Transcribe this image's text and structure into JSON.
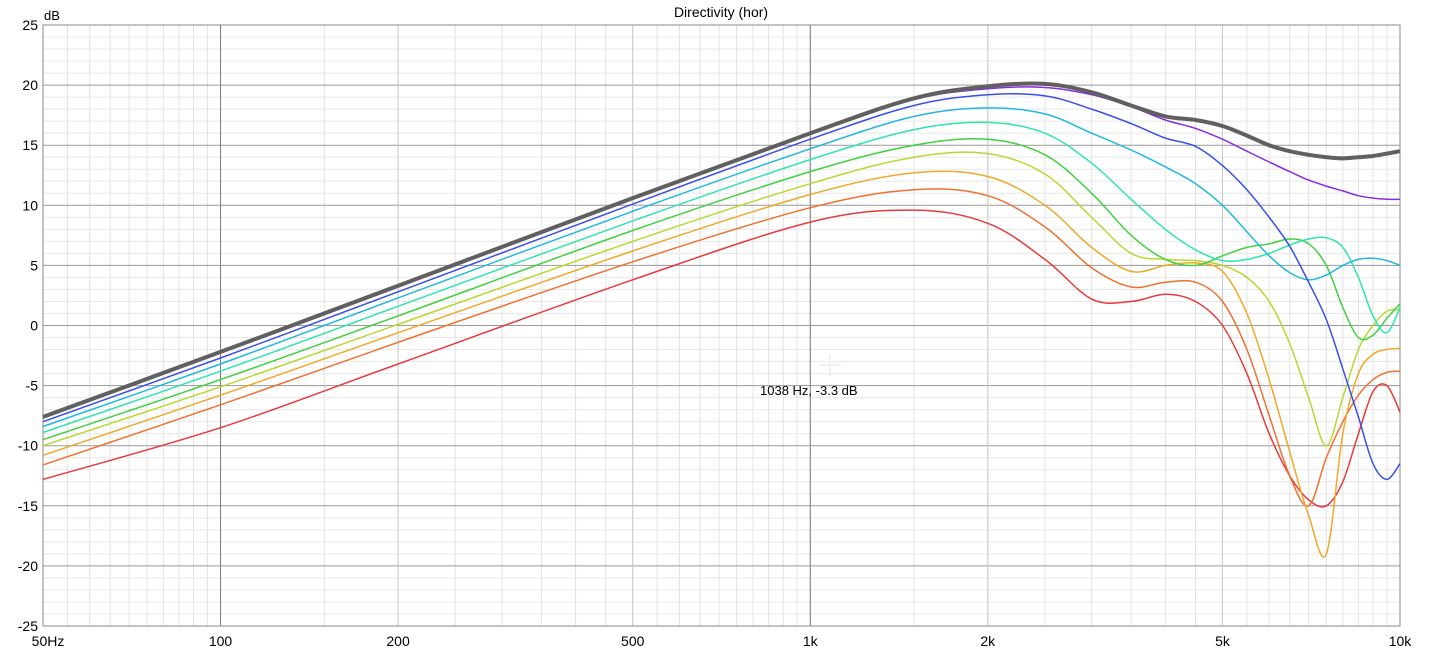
{
  "chart_data": {
    "type": "line",
    "title": "Directivity (hor)",
    "y_unit_label": "dB",
    "x_scale": "log",
    "xlim": [
      50,
      10000
    ],
    "ylim": [
      -25,
      25
    ],
    "grid": true,
    "x_tick_values": [
      50,
      100,
      200,
      500,
      1000,
      2000,
      5000,
      10000
    ],
    "x_tick_labels": [
      "50Hz",
      "100",
      "200",
      "500",
      "1k",
      "2k",
      "5k",
      "10k"
    ],
    "y_tick_values": [
      25,
      20,
      15,
      10,
      5,
      0,
      -5,
      -10,
      -15,
      -20,
      -25
    ],
    "y_tick_labels": [
      "25",
      "20",
      "15",
      "10",
      "5",
      "0",
      "-5",
      "-10",
      "-15",
      "-20",
      "-25"
    ],
    "cursor": {
      "x": 1038,
      "y": -3.3,
      "label": "1038 Hz, -3.3 dB"
    },
    "x": [
      50,
      100,
      200,
      500,
      1000,
      1500,
      2000,
      2500,
      3000,
      3500,
      4000,
      4500,
      5000,
      5500,
      6000,
      6500,
      7000,
      7500,
      8000,
      8500,
      9000,
      9500,
      10000
    ],
    "series": [
      {
        "color": "#606060",
        "width": 4,
        "values": [
          -7.6,
          -2.2,
          3.3,
          10.6,
          16.0,
          18.9,
          19.9,
          20.1,
          19.4,
          18.3,
          17.4,
          17.1,
          16.6,
          15.8,
          15.0,
          14.5,
          14.2,
          14.0,
          13.9,
          14.0,
          14.1,
          14.3,
          14.5
        ]
      },
      {
        "color": "#8a2be2",
        "width": 1.5,
        "values": [
          -7.7,
          -2.3,
          3.2,
          10.5,
          15.9,
          18.8,
          19.7,
          19.8,
          19.2,
          18.2,
          17.1,
          16.4,
          15.5,
          14.5,
          13.6,
          12.8,
          12.1,
          11.6,
          11.2,
          10.8,
          10.6,
          10.5,
          10.5
        ]
      },
      {
        "color": "#3a4fe8",
        "width": 1.5,
        "values": [
          -8.0,
          -2.7,
          2.8,
          10.1,
          15.5,
          18.3,
          19.2,
          19.1,
          18.0,
          16.8,
          15.6,
          14.9,
          13.3,
          11.3,
          9.0,
          6.6,
          3.6,
          0.5,
          -3.6,
          -7.6,
          -11.5,
          -12.8,
          -11.5
        ]
      },
      {
        "color": "#20b8e0",
        "width": 1.5,
        "values": [
          -8.4,
          -3.2,
          2.3,
          9.5,
          14.7,
          17.4,
          18.1,
          17.6,
          16.0,
          14.6,
          13.2,
          11.8,
          10.0,
          7.8,
          5.8,
          4.4,
          3.8,
          4.2,
          5.0,
          5.5,
          5.6,
          5.4,
          5.0
        ]
      },
      {
        "color": "#2ee5b0",
        "width": 1.5,
        "values": [
          -8.9,
          -3.8,
          1.6,
          8.7,
          13.8,
          16.3,
          16.9,
          16.0,
          13.5,
          10.5,
          8.0,
          6.3,
          5.4,
          5.5,
          6.0,
          6.7,
          7.2,
          7.3,
          6.5,
          4.0,
          0.8,
          -0.6,
          1.5
        ]
      },
      {
        "color": "#40d040",
        "width": 1.5,
        "values": [
          -9.5,
          -4.5,
          0.8,
          7.9,
          12.8,
          15.0,
          15.5,
          14.2,
          11.0,
          7.5,
          5.5,
          5.0,
          5.8,
          6.5,
          6.8,
          7.2,
          6.8,
          5.0,
          1.5,
          -1.0,
          -0.8,
          0.6,
          1.8
        ]
      },
      {
        "color": "#b8d830",
        "width": 1.5,
        "values": [
          -10.0,
          -5.1,
          0.1,
          7.0,
          11.8,
          14.0,
          14.3,
          12.6,
          9.0,
          6.0,
          5.5,
          5.4,
          5.0,
          4.0,
          2.0,
          -1.5,
          -6.0,
          -10.0,
          -6.0,
          -2.0,
          0.0,
          1.2,
          1.3
        ]
      },
      {
        "color": "#f0a828",
        "width": 1.5,
        "values": [
          -10.8,
          -5.8,
          -0.6,
          6.2,
          10.9,
          12.7,
          12.4,
          10.0,
          6.5,
          4.5,
          5.0,
          5.2,
          4.5,
          1.0,
          -4.5,
          -10.5,
          -15.8,
          -19.0,
          -9.0,
          -4.0,
          -2.4,
          -2.0,
          -1.9
        ]
      },
      {
        "color": "#f07030",
        "width": 1.5,
        "values": [
          -11.6,
          -6.6,
          -1.4,
          5.3,
          9.8,
          11.3,
          10.8,
          8.2,
          4.8,
          3.2,
          3.6,
          3.6,
          2.0,
          -2.0,
          -7.5,
          -12.5,
          -15.0,
          -11.0,
          -8.0,
          -5.8,
          -4.5,
          -3.9,
          -3.8
        ]
      },
      {
        "color": "#e83a3a",
        "width": 1.5,
        "values": [
          -12.8,
          -8.5,
          -3.2,
          3.8,
          8.6,
          9.6,
          8.5,
          5.5,
          2.2,
          2.0,
          2.6,
          2.0,
          0.0,
          -4.0,
          -9.0,
          -12.5,
          -14.5,
          -15.0,
          -13.0,
          -9.0,
          -5.5,
          -5.0,
          -7.2
        ]
      }
    ]
  }
}
